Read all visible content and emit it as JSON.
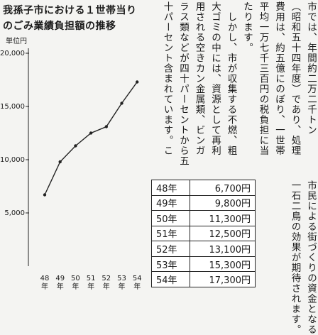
{
  "chart_data": {
    "type": "line",
    "title": "我孫子市における１世帯当りのごみ業績負担額の推移",
    "unit": "単位円",
    "categories": [
      "48\n年",
      "49\n年",
      "50\n年",
      "51\n年",
      "52\n年",
      "53\n年",
      "54\n年"
    ],
    "values": [
      6700,
      9800,
      11300,
      12500,
      13100,
      15300,
      17300
    ],
    "color": "#222222",
    "ylim": [
      0,
      21000
    ],
    "yticks": [
      {
        "value": 5000,
        "label": "5,000"
      },
      {
        "value": 10000,
        "label": "10,000"
      },
      {
        "value": 15000,
        "label": "15,000"
      },
      {
        "value": 20000,
        "label": "20,000"
      }
    ],
    "grid": false
  },
  "table": {
    "rows": [
      [
        "48年",
        "6,700円"
      ],
      [
        "49年",
        "9,800円"
      ],
      [
        "50年",
        "11,300円"
      ],
      [
        "51年",
        "12,500円"
      ],
      [
        "52年",
        "13,100円"
      ],
      [
        "53年",
        "15,300円"
      ],
      [
        "54年",
        "17,300円"
      ]
    ]
  },
  "article": {
    "upper_columns": [
      "市では、年間約二万二千トン",
      "（昭和五十四年度）であり、処理",
      "費用は、約五億にのぼり、一世帯",
      "平均一万七千三百円の税負担に当",
      "たります。",
      "　しかし、市が収集する不燃、粗",
      "大ゴミの中には、資源として再利",
      "用される空きカン金属類、ビンガ",
      "ラス類などが四十パーセントから五",
      "十パーセント含まれています。こ"
    ],
    "lower_columns": [
      "市民による街づくりの資金となる",
      "一石二鳥の効果が期待されます。"
    ]
  }
}
